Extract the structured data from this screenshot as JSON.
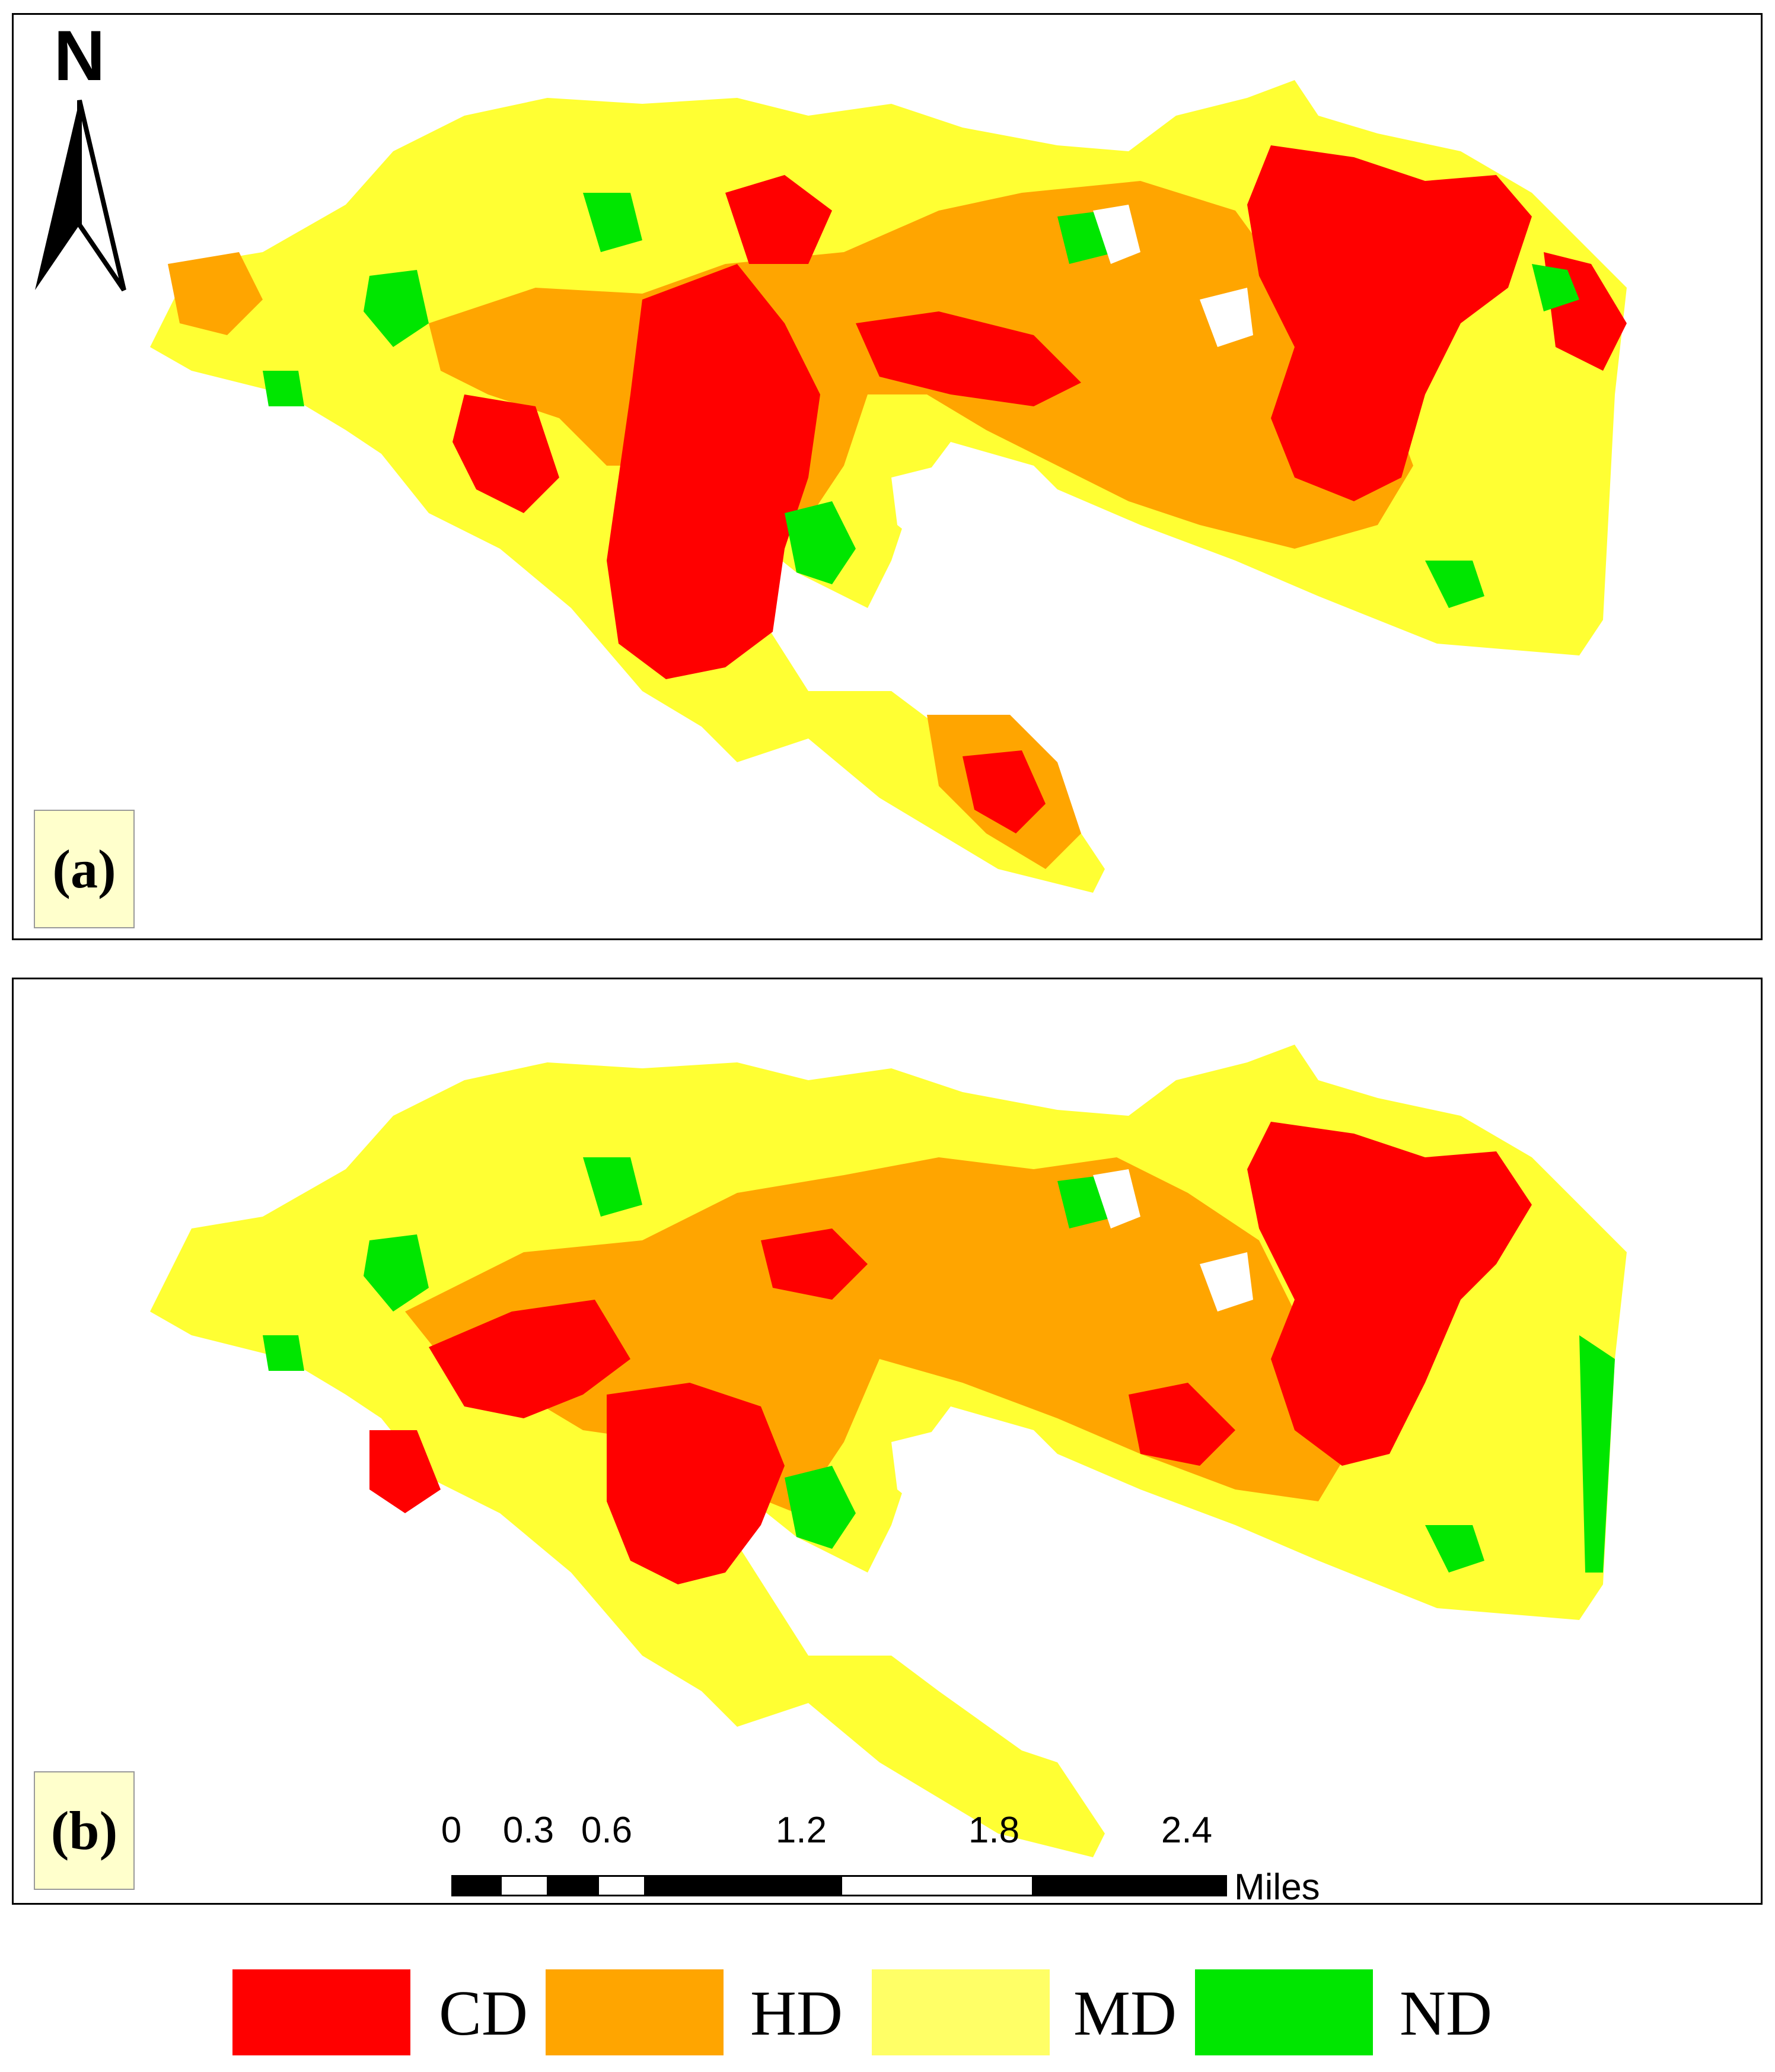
{
  "panels": [
    {
      "id": "a",
      "label": "(a)"
    },
    {
      "id": "b",
      "label": "(b)"
    }
  ],
  "north_arrow": {
    "letter": "N",
    "icon": "north-arrow-icon"
  },
  "scale_bar": {
    "ticks": [
      "0",
      "0.3",
      "0.6",
      "1.2",
      "1.8",
      "2.4"
    ],
    "unit": "Miles"
  },
  "legend": [
    {
      "label": "CD",
      "color": "#ff0000"
    },
    {
      "label": "HD",
      "color": "#ffa500"
    },
    {
      "label": "MD",
      "color": "#ffff33"
    },
    {
      "label": "ND",
      "color": "#00e600"
    }
  ],
  "colors": {
    "CD": "#ff0000",
    "HD": "#ffa500",
    "MD": "#ffff33",
    "ND": "#00e600",
    "label_box": "#ffffcc"
  }
}
